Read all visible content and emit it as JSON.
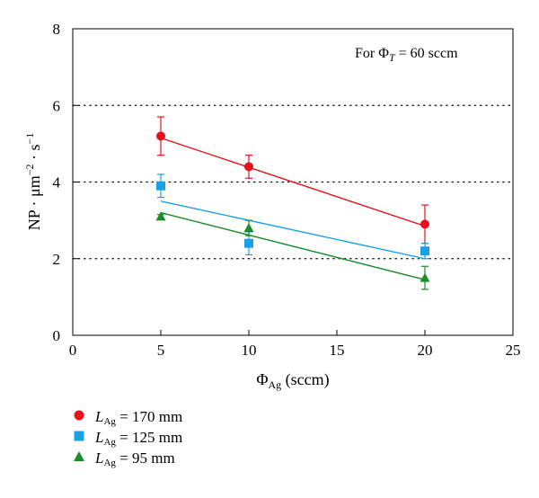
{
  "chart_data": {
    "type": "scatter",
    "annotation": {
      "prefix": "For ",
      "symbol": "Φ",
      "sub": "T",
      "rest": " = 60 sccm"
    },
    "xlabel": {
      "symbol": "Φ",
      "sub": "Ag",
      "rest": " (sccm)"
    },
    "ylabel": {
      "base": "NP · μm",
      "exp1": "−2",
      "mid": " · s",
      "exp2": "−1"
    },
    "xlim": [
      0,
      25
    ],
    "ylim": [
      0,
      8
    ],
    "xticks": [
      "0",
      "5",
      "10",
      "15",
      "20",
      "25"
    ],
    "yticks": [
      "0",
      "2",
      "4",
      "6",
      "8"
    ],
    "grid": {
      "horizontal_dotted_at": [
        2,
        4,
        6
      ]
    },
    "legend_position": "below",
    "series": [
      {
        "name_symbol": "L",
        "name_sub": "Ag",
        "name_rest": " = 170 mm",
        "color": "#e8101a",
        "marker": "circle",
        "x": [
          5,
          10,
          20
        ],
        "y": [
          5.2,
          4.4,
          2.9
        ],
        "err": [
          0.5,
          0.3,
          0.5
        ],
        "fit": {
          "x": [
            5,
            20
          ],
          "y": [
            5.15,
            2.85
          ]
        }
      },
      {
        "name_symbol": "L",
        "name_sub": "Ag",
        "name_rest": " = 125 mm",
        "color": "#1aa0e6",
        "marker": "square",
        "x": [
          5,
          10,
          20
        ],
        "y": [
          3.9,
          2.4,
          2.2
        ],
        "err": [
          0.3,
          0.3,
          0.2
        ],
        "fit": {
          "x": [
            5,
            20
          ],
          "y": [
            3.5,
            2.0
          ]
        }
      },
      {
        "name_symbol": "L",
        "name_sub": "Ag",
        "name_rest": " = 95 mm",
        "color": "#1a8c2a",
        "marker": "triangle",
        "x": [
          5,
          10,
          20
        ],
        "y": [
          3.1,
          2.8,
          1.5
        ],
        "err": [
          0.05,
          0.2,
          0.3
        ],
        "fit": {
          "x": [
            5,
            20
          ],
          "y": [
            3.2,
            1.45
          ]
        }
      }
    ]
  }
}
